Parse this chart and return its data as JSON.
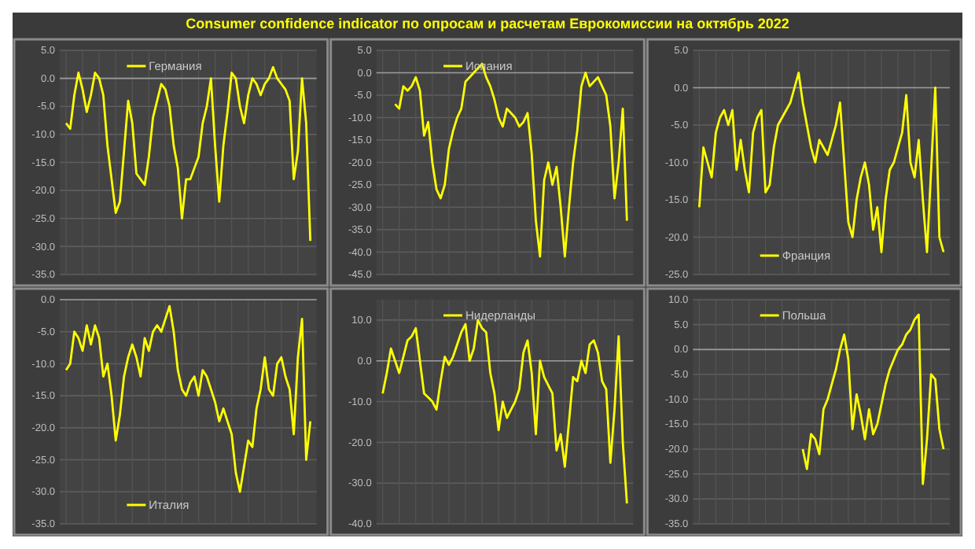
{
  "chart_data": [
    {
      "type": "line",
      "title": "Consumer confidence indicator по опросам и расчетам Еврокомиссии на октябрь 2022",
      "categories": [
        null,
        null,
        null,
        null,
        null,
        null,
        null,
        null,
        null,
        null,
        null,
        null,
        null,
        null,
        null,
        null,
        null,
        null,
        null,
        null,
        null,
        null,
        null,
        null,
        null,
        null,
        null,
        null,
        null,
        null,
        null,
        null,
        null,
        null,
        null,
        null,
        null,
        null,
        null,
        null,
        null,
        null,
        null,
        null,
        null,
        null,
        null,
        null,
        null,
        null,
        null,
        null,
        null,
        null,
        null,
        null,
        null,
        null,
        null,
        null
      ],
      "series": [
        {
          "name": "Германия",
          "color": "#ffff00",
          "values": [
            -8,
            -9,
            -3,
            1,
            -2,
            -6,
            -3,
            1,
            0,
            -3,
            -12,
            -18,
            -24,
            -22,
            -13,
            -4,
            -8,
            -17,
            -18,
            -19,
            -14,
            -7,
            -4,
            -1,
            -2,
            -5,
            -12,
            -16,
            -25,
            -18,
            -18,
            -16,
            -14,
            -8,
            -5,
            0,
            -12,
            -22,
            -12,
            -6,
            1,
            0,
            -5,
            -8,
            -3,
            0,
            -1,
            -3,
            -1,
            0,
            2,
            0,
            -1,
            -2,
            -4,
            -18,
            -13,
            0,
            -8,
            -29
          ]
        }
      ],
      "ylim": [
        -35,
        5
      ],
      "yticks": [
        {
          "value": -35,
          "label": "-35.0"
        },
        {
          "value": -30,
          "label": "-30.0"
        },
        {
          "value": -25,
          "label": "-25.0"
        },
        {
          "value": -20,
          "label": "-20.0"
        },
        {
          "value": -15,
          "label": "-15.0"
        },
        {
          "value": -10,
          "label": "-10.0"
        },
        {
          "value": -5,
          "label": "-5.0"
        },
        {
          "value": 0,
          "label": "0.0"
        },
        {
          "value": 5,
          "label": "5.0"
        }
      ],
      "grid": true,
      "legend": "top"
    },
    {
      "type": "line",
      "categories": [
        null,
        null,
        null,
        null,
        null,
        null,
        null,
        null,
        null,
        null,
        null,
        null,
        null,
        null,
        null,
        null,
        null,
        null,
        null,
        null,
        null,
        null,
        null,
        null,
        null,
        null,
        null,
        null,
        null,
        null,
        null,
        null,
        null,
        null,
        null,
        null,
        null,
        null,
        null,
        null,
        null,
        null,
        null,
        null,
        null,
        null,
        null,
        null,
        null,
        null,
        null,
        null,
        null,
        null,
        null,
        null,
        null,
        null,
        null,
        null
      ],
      "series": [
        {
          "name": "Испания",
          "color": "#ffff00",
          "values": [
            null,
            null,
            null,
            -7,
            -8,
            -3,
            -4,
            -3,
            -1,
            -4,
            -14,
            -11,
            -20,
            -26,
            -28,
            -25,
            -17,
            -13,
            -10,
            -8,
            -2,
            -1,
            0,
            1,
            2,
            -1,
            -3,
            -6,
            -10,
            -12,
            -8,
            -9,
            -10,
            -12,
            -11,
            -9,
            -18,
            -33,
            -41,
            -24,
            -20,
            -25,
            -21,
            -30,
            -41,
            -30,
            -20,
            -13,
            -3,
            0,
            -3,
            -2,
            -1,
            -3,
            -5,
            -12,
            -28,
            -20,
            -8,
            -33
          ]
        }
      ],
      "ylim": [
        -45,
        5
      ],
      "yticks": [
        {
          "value": -45,
          "label": "-45.0"
        },
        {
          "value": -40,
          "label": "-40.0"
        },
        {
          "value": -35,
          "label": "-35.0"
        },
        {
          "value": -30,
          "label": "-30.0"
        },
        {
          "value": -25,
          "label": "-25.0"
        },
        {
          "value": -20,
          "label": "-20.0"
        },
        {
          "value": -15,
          "label": "-15.0"
        },
        {
          "value": -10,
          "label": "-10.0"
        },
        {
          "value": -5,
          "label": "-5.0"
        },
        {
          "value": 0,
          "label": "0.0"
        },
        {
          "value": 5,
          "label": "5.0"
        }
      ],
      "grid": true,
      "legend": "top"
    },
    {
      "type": "line",
      "categories": [
        null,
        null,
        null,
        null,
        null,
        null,
        null,
        null,
        null,
        null,
        null,
        null,
        null,
        null,
        null,
        null,
        null,
        null,
        null,
        null,
        null,
        null,
        null,
        null,
        null,
        null,
        null,
        null,
        null,
        null,
        null,
        null,
        null,
        null,
        null,
        null,
        null,
        null,
        null,
        null,
        null,
        null,
        null,
        null,
        null,
        null,
        null,
        null,
        null,
        null,
        null,
        null,
        null,
        null,
        null,
        null,
        null,
        null,
        null,
        null
      ],
      "series": [
        {
          "name": "Франция",
          "color": "#ffff00",
          "values": [
            -16,
            -8,
            -10,
            -12,
            -6,
            -4,
            -3,
            -5,
            -3,
            -11,
            -7,
            -11,
            -14,
            -6,
            -4,
            -3,
            -14,
            -13,
            -8,
            -5,
            -4,
            -3,
            -2,
            0,
            2,
            -2,
            -5,
            -8,
            -10,
            -7,
            -8,
            -9,
            -7,
            -5,
            -2,
            -10,
            -18,
            -20,
            -15,
            -12,
            -10,
            -13,
            -19,
            -16,
            -22,
            -15,
            -11,
            -10,
            -8,
            -6,
            -1,
            -10,
            -12,
            -7,
            -15,
            -22,
            -11,
            0,
            -20,
            -22
          ]
        }
      ],
      "ylim": [
        -25,
        5
      ],
      "yticks": [
        {
          "value": -25,
          "label": "-25.0"
        },
        {
          "value": -20,
          "label": "-20.0"
        },
        {
          "value": -15,
          "label": "-15.0"
        },
        {
          "value": -10,
          "label": "-10.0"
        },
        {
          "value": -5,
          "label": "-5.0"
        },
        {
          "value": 0,
          "label": "0.0"
        },
        {
          "value": 5,
          "label": "5.0"
        }
      ],
      "grid": true,
      "legend": "bottom"
    },
    {
      "type": "line",
      "categories": [
        null,
        null,
        null,
        null,
        null,
        null,
        null,
        null,
        null,
        null,
        null,
        null,
        null,
        null,
        null,
        null,
        null,
        null,
        null,
        null,
        null,
        null,
        null,
        null,
        null,
        null,
        null,
        null,
        null,
        null,
        null,
        null,
        null,
        null,
        null,
        null,
        null,
        null,
        null,
        null,
        null,
        null,
        null,
        null,
        null,
        null,
        null,
        null,
        null,
        null,
        null,
        null,
        null,
        null,
        null,
        null,
        null,
        null,
        null,
        null
      ],
      "series": [
        {
          "name": "Италия",
          "color": "#ffff00",
          "values": [
            -11,
            -10,
            -5,
            -6,
            -8,
            -4,
            -7,
            -4,
            -6,
            -12,
            -10,
            -15,
            -22,
            -18,
            -12,
            -9,
            -7,
            -9,
            -12,
            -6,
            -8,
            -5,
            -4,
            -5,
            -3,
            -1,
            -5,
            -11,
            -14,
            -15,
            -13,
            -12,
            -15,
            -11,
            -12,
            -14,
            -16,
            -19,
            -17,
            -19,
            -21,
            -27,
            -30,
            -26,
            -22,
            -23,
            -17,
            -14,
            -9,
            -14,
            -15,
            -10,
            -9,
            -12,
            -14,
            -21,
            -9,
            -3,
            -25,
            -19
          ]
        }
      ],
      "ylim": [
        -35,
        0
      ],
      "yticks": [
        {
          "value": -35,
          "label": "-35.0"
        },
        {
          "value": -30,
          "label": "-30.0"
        },
        {
          "value": -25,
          "label": "-25.0"
        },
        {
          "value": -20,
          "label": "-20.0"
        },
        {
          "value": -15,
          "label": "-15.0"
        },
        {
          "value": -10,
          "label": "-10.0"
        },
        {
          "value": -5,
          "label": "-5.0"
        },
        {
          "value": 0,
          "label": "0.0"
        }
      ],
      "grid": true,
      "legend": "bottom"
    },
    {
      "type": "line",
      "categories": [
        null,
        null,
        null,
        null,
        null,
        null,
        null,
        null,
        null,
        null,
        null,
        null,
        null,
        null,
        null,
        null,
        null,
        null,
        null,
        null,
        null,
        null,
        null,
        null,
        null,
        null,
        null,
        null,
        null,
        null,
        null,
        null,
        null,
        null,
        null,
        null,
        null,
        null,
        null,
        null,
        null,
        null,
        null,
        null,
        null,
        null,
        null,
        null,
        null,
        null,
        null,
        null,
        null,
        null,
        null,
        null,
        null,
        null,
        null,
        null
      ],
      "series": [
        {
          "name": "Нидерланды",
          "color": "#ffff00",
          "values": [
            -8,
            -3,
            3,
            0,
            -3,
            1,
            5,
            6,
            8,
            0,
            -8,
            -9,
            -10,
            -12,
            -5,
            1,
            -1,
            1,
            4,
            7,
            9,
            0,
            3,
            10,
            8,
            7,
            -3,
            -8,
            -17,
            -10,
            -14,
            -12,
            -10,
            -7,
            2,
            5,
            -3,
            -18,
            0,
            -4,
            -6,
            -8,
            -22,
            -18,
            -26,
            -15,
            -4,
            -5,
            0,
            -3,
            4,
            5,
            2,
            -5,
            -7,
            -25,
            -12,
            6,
            -20,
            -35
          ]
        }
      ],
      "ylim": [
        -40,
        15
      ],
      "yticks": [
        {
          "value": -40,
          "label": "-40.0"
        },
        {
          "value": -30,
          "label": "-30.0"
        },
        {
          "value": -20,
          "label": "-20.0"
        },
        {
          "value": -10,
          "label": "-10.0"
        },
        {
          "value": 0,
          "label": "0.0"
        },
        {
          "value": 10,
          "label": "10.0"
        }
      ],
      "grid": true,
      "legend": "top"
    },
    {
      "type": "line",
      "categories": [
        null,
        null,
        null,
        null,
        null,
        null,
        null,
        null,
        null,
        null,
        null,
        null,
        null,
        null,
        null,
        null,
        null,
        null,
        null,
        null,
        null,
        null,
        null,
        null,
        null,
        null,
        null,
        null,
        null,
        null,
        null,
        null,
        null,
        null,
        null,
        null,
        null,
        null,
        null,
        null,
        null,
        null,
        null,
        null,
        null,
        null,
        null,
        null,
        null,
        null,
        null,
        null,
        null,
        null,
        null,
        null,
        null,
        null,
        null,
        null
      ],
      "series": [
        {
          "name": "Польша",
          "color": "#ffff00",
          "values": [
            null,
            null,
            null,
            null,
            null,
            null,
            null,
            null,
            null,
            null,
            null,
            null,
            null,
            null,
            null,
            null,
            null,
            null,
            null,
            null,
            null,
            null,
            null,
            null,
            null,
            -20,
            -24,
            -17,
            -18,
            -21,
            -12,
            -10,
            -7,
            -4,
            0,
            3,
            -2,
            -16,
            -9,
            -13,
            -18,
            -12,
            -17,
            -15,
            -11,
            -7,
            -4,
            -2,
            0,
            1,
            3,
            4,
            6,
            7,
            -27,
            -18,
            -5,
            -6,
            -16,
            -20
          ]
        }
      ],
      "ylim": [
        -35,
        10
      ],
      "yticks": [
        {
          "value": -35,
          "label": "-35.0"
        },
        {
          "value": -30,
          "label": "-30.0"
        },
        {
          "value": -25,
          "label": "-25.0"
        },
        {
          "value": -20,
          "label": "-20.0"
        },
        {
          "value": -15,
          "label": "-15.0"
        },
        {
          "value": -10,
          "label": "-10.0"
        },
        {
          "value": -5,
          "label": "-5.0"
        },
        {
          "value": 0,
          "label": "0.0"
        },
        {
          "value": 5,
          "label": "5.0"
        },
        {
          "value": 10,
          "label": "10.0"
        }
      ],
      "grid": true,
      "legend": "top"
    }
  ]
}
